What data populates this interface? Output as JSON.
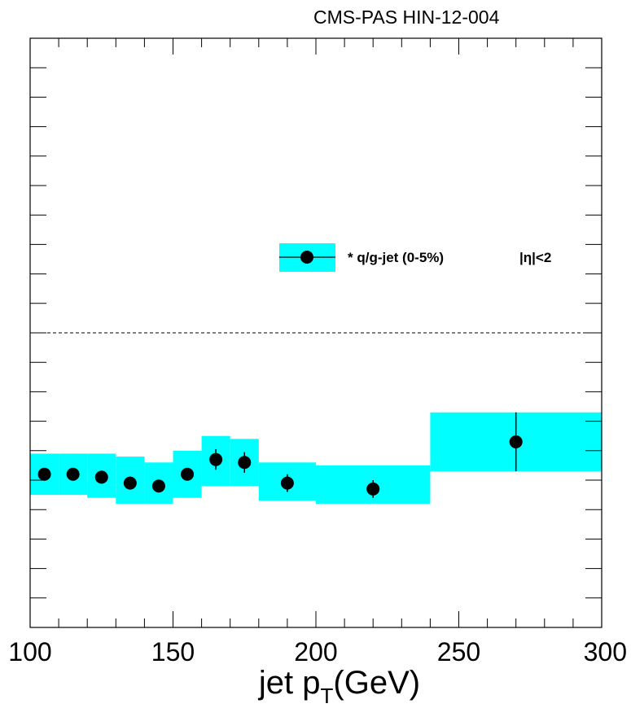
{
  "header": {
    "text": "CMS-PAS HIN-12-004"
  },
  "chart_data": {
    "type": "scatter",
    "xlabel": "jet p",
    "xlabel_sub": "T",
    "xlabel_unit": "(GeV)",
    "xlim": [
      100,
      300
    ],
    "ylim": [
      0,
      2
    ],
    "x_major_ticks": [
      100,
      150,
      200,
      250,
      300
    ],
    "x_minor_step": 10,
    "y_tick_step": 0.1,
    "reference_line_y": 1.0,
    "grid": false,
    "legend": {
      "position": "right-middle",
      "label": "* q/g-jet (0-5%)",
      "eta_label": "|η|<2"
    },
    "series": [
      {
        "name": "* q/g-jet (0-5%)",
        "x": [
          105,
          115,
          125,
          135,
          145,
          155,
          165,
          175,
          190,
          220,
          270
        ],
        "y": [
          0.52,
          0.52,
          0.51,
          0.49,
          0.48,
          0.52,
          0.57,
          0.56,
          0.49,
          0.47,
          0.63
        ],
        "stat_err": [
          0.012,
          0.012,
          0.012,
          0.012,
          0.012,
          0.015,
          0.035,
          0.035,
          0.03,
          0.03,
          0.1
        ],
        "sys_band": [
          {
            "x0": 100,
            "x1": 110,
            "ylo": 0.45,
            "yhi": 0.59
          },
          {
            "x0": 110,
            "x1": 120,
            "ylo": 0.45,
            "yhi": 0.59
          },
          {
            "x0": 120,
            "x1": 130,
            "ylo": 0.44,
            "yhi": 0.59
          },
          {
            "x0": 130,
            "x1": 140,
            "ylo": 0.42,
            "yhi": 0.58
          },
          {
            "x0": 140,
            "x1": 150,
            "ylo": 0.42,
            "yhi": 0.56
          },
          {
            "x0": 150,
            "x1": 160,
            "ylo": 0.44,
            "yhi": 0.6
          },
          {
            "x0": 160,
            "x1": 170,
            "ylo": 0.48,
            "yhi": 0.65
          },
          {
            "x0": 170,
            "x1": 180,
            "ylo": 0.48,
            "yhi": 0.64
          },
          {
            "x0": 180,
            "x1": 200,
            "ylo": 0.43,
            "yhi": 0.56
          },
          {
            "x0": 200,
            "x1": 240,
            "ylo": 0.42,
            "yhi": 0.55
          },
          {
            "x0": 240,
            "x1": 300,
            "ylo": 0.53,
            "yhi": 0.73
          }
        ]
      }
    ],
    "colors": {
      "band": "#00ffff",
      "marker": "#000000",
      "frame": "#000000"
    }
  }
}
